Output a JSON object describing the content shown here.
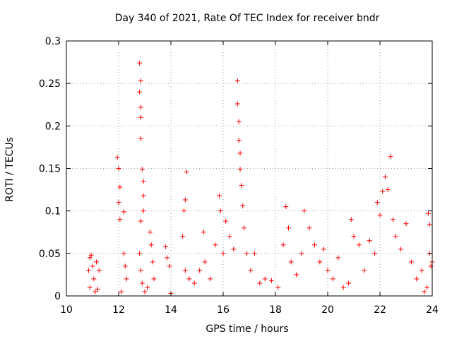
{
  "chart_data": {
    "type": "scatter",
    "title": "Day 340 of 2021, Rate Of TEC Index for receiver bndr",
    "xlabel": "GPS time / hours",
    "ylabel": "ROTI / TECUs",
    "xlim": [
      10,
      24
    ],
    "ylim": [
      0,
      0.3
    ],
    "xticks": [
      10,
      12,
      14,
      16,
      18,
      20,
      22,
      24
    ],
    "yticks": [
      0,
      0.05,
      0.1,
      0.15,
      0.2,
      0.25,
      0.3
    ],
    "xtick_labels": [
      "10",
      "12",
      "14",
      "16",
      "18",
      "20",
      "22",
      "24"
    ],
    "ytick_labels": [
      "0",
      "0.05",
      "0.1",
      "0.15",
      "0.2",
      "0.25",
      "0.3"
    ],
    "grid": true,
    "marker": "+",
    "color": "#ff0000",
    "series": [
      {
        "name": "ROTI",
        "points": [
          [
            10.85,
            0.03
          ],
          [
            10.9,
            0.045
          ],
          [
            10.95,
            0.048
          ],
          [
            11.0,
            0.035
          ],
          [
            11.05,
            0.02
          ],
          [
            10.9,
            0.01
          ],
          [
            11.1,
            0.005
          ],
          [
            11.15,
            0.04
          ],
          [
            11.2,
            0.008
          ],
          [
            11.25,
            0.03
          ],
          [
            11.95,
            0.163
          ],
          [
            12.0,
            0.15
          ],
          [
            12.05,
            0.128
          ],
          [
            12.0,
            0.11
          ],
          [
            12.05,
            0.09
          ],
          [
            12.2,
            0.099
          ],
          [
            12.2,
            0.05
          ],
          [
            12.25,
            0.035
          ],
          [
            12.3,
            0.02
          ],
          [
            12.1,
            0.005
          ],
          [
            12.8,
            0.274
          ],
          [
            12.85,
            0.253
          ],
          [
            12.8,
            0.24
          ],
          [
            12.85,
            0.222
          ],
          [
            12.85,
            0.21
          ],
          [
            12.85,
            0.185
          ],
          [
            12.9,
            0.149
          ],
          [
            12.95,
            0.135
          ],
          [
            12.95,
            0.118
          ],
          [
            12.95,
            0.1
          ],
          [
            12.85,
            0.088
          ],
          [
            12.8,
            0.05
          ],
          [
            12.85,
            0.03
          ],
          [
            12.9,
            0.015
          ],
          [
            13.2,
            0.075
          ],
          [
            13.25,
            0.06
          ],
          [
            13.3,
            0.04
          ],
          [
            13.35,
            0.02
          ],
          [
            13.1,
            0.01
          ],
          [
            13.0,
            0.005
          ],
          [
            13.8,
            0.058
          ],
          [
            13.85,
            0.045
          ],
          [
            13.95,
            0.035
          ],
          [
            14.0,
            0.003
          ],
          [
            14.45,
            0.07
          ],
          [
            14.5,
            0.1
          ],
          [
            14.55,
            0.113
          ],
          [
            14.6,
            0.146
          ],
          [
            14.55,
            0.03
          ],
          [
            14.7,
            0.02
          ],
          [
            14.9,
            0.015
          ],
          [
            15.1,
            0.03
          ],
          [
            15.25,
            0.075
          ],
          [
            15.3,
            0.04
          ],
          [
            15.5,
            0.02
          ],
          [
            15.7,
            0.06
          ],
          [
            15.85,
            0.118
          ],
          [
            15.9,
            0.1
          ],
          [
            16.0,
            0.05
          ],
          [
            16.1,
            0.088
          ],
          [
            16.25,
            0.07
          ],
          [
            16.4,
            0.055
          ],
          [
            16.55,
            0.253
          ],
          [
            16.55,
            0.226
          ],
          [
            16.6,
            0.205
          ],
          [
            16.6,
            0.183
          ],
          [
            16.65,
            0.168
          ],
          [
            16.65,
            0.149
          ],
          [
            16.7,
            0.13
          ],
          [
            16.75,
            0.106
          ],
          [
            16.8,
            0.08
          ],
          [
            16.9,
            0.05
          ],
          [
            17.05,
            0.03
          ],
          [
            17.2,
            0.05
          ],
          [
            17.4,
            0.015
          ],
          [
            17.6,
            0.02
          ],
          [
            17.85,
            0.018
          ],
          [
            18.1,
            0.01
          ],
          [
            18.3,
            0.06
          ],
          [
            18.4,
            0.105
          ],
          [
            18.5,
            0.08
          ],
          [
            18.6,
            0.04
          ],
          [
            18.8,
            0.025
          ],
          [
            19.0,
            0.05
          ],
          [
            19.1,
            0.1
          ],
          [
            19.3,
            0.08
          ],
          [
            19.5,
            0.06
          ],
          [
            19.7,
            0.04
          ],
          [
            19.85,
            0.055
          ],
          [
            20.0,
            0.03
          ],
          [
            20.2,
            0.02
          ],
          [
            20.4,
            0.045
          ],
          [
            20.6,
            0.01
          ],
          [
            20.8,
            0.015
          ],
          [
            20.9,
            0.09
          ],
          [
            21.0,
            0.07
          ],
          [
            21.2,
            0.06
          ],
          [
            21.4,
            0.03
          ],
          [
            21.6,
            0.065
          ],
          [
            21.8,
            0.05
          ],
          [
            21.9,
            0.11
          ],
          [
            22.0,
            0.095
          ],
          [
            22.1,
            0.123
          ],
          [
            22.2,
            0.14
          ],
          [
            22.3,
            0.125
          ],
          [
            22.4,
            0.164
          ],
          [
            22.5,
            0.09
          ],
          [
            22.6,
            0.07
          ],
          [
            22.8,
            0.055
          ],
          [
            23.0,
            0.085
          ],
          [
            23.2,
            0.04
          ],
          [
            23.4,
            0.02
          ],
          [
            23.6,
            0.03
          ],
          [
            23.8,
            0.01
          ],
          [
            23.85,
            0.097
          ],
          [
            23.9,
            0.084
          ],
          [
            23.9,
            0.05
          ],
          [
            23.95,
            0.035
          ],
          [
            24.0,
            0.04
          ],
          [
            23.7,
            0.005
          ]
        ]
      }
    ]
  }
}
